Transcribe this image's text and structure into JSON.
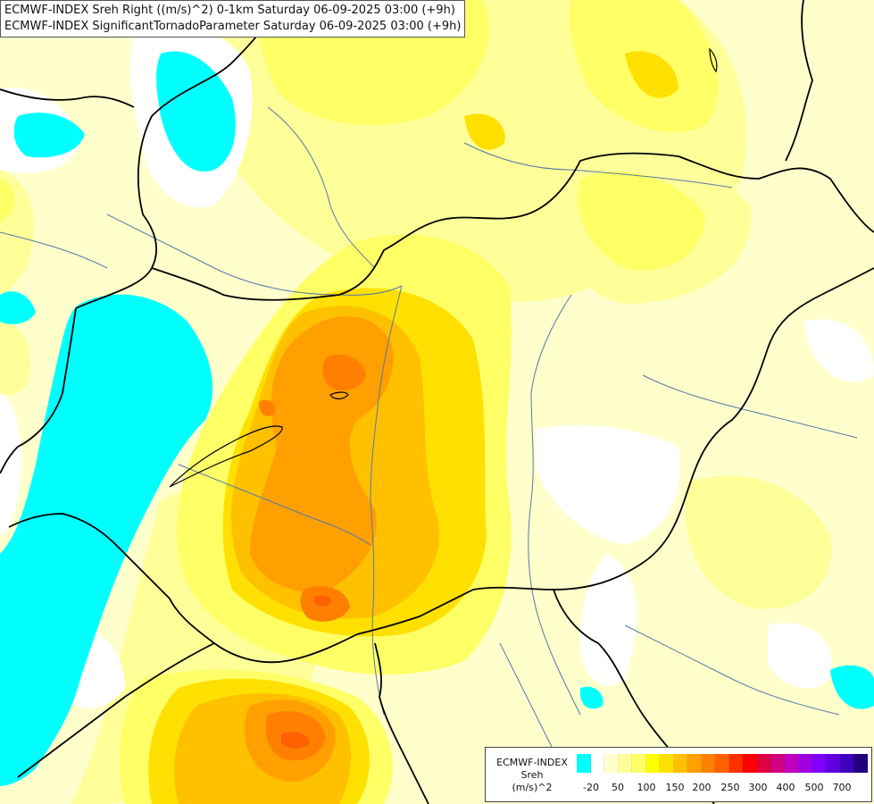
{
  "title": {
    "line1": "ECMWF-INDEX Sreh Right ((m/s)^2) 0-1km Saturday 06-09-2025 03:00 (+9h)",
    "line2": "ECMWF-INDEX SignificantTornadoParameter Saturday 06-09-2025 03:00 (+9h)"
  },
  "legend": {
    "line1": "ECMWF-INDEX",
    "line2": "Sreh",
    "line3": "(m/s)^2",
    "colors": [
      "#00ffff",
      "#ffffff",
      "#ffffcc",
      "#ffff99",
      "#ffff66",
      "#ffff00",
      "#ffe000",
      "#ffc000",
      "#ffa000",
      "#ff8000",
      "#ff6000",
      "#ff3000",
      "#ff0000",
      "#e00040",
      "#d00080",
      "#c000c0",
      "#a000e0",
      "#8000ff",
      "#6000e0",
      "#4000c0",
      "#200080"
    ],
    "ticks": [
      "-20",
      "50",
      "100",
      "150",
      "200",
      "250",
      "300",
      "400",
      "500",
      "700"
    ]
  },
  "map": {
    "fill_colors": {
      "cyan": "#00ffff",
      "white": "#ffffff",
      "pale": "#ffffcc",
      "light": "#ffff99",
      "yellow1": "#ffff66",
      "yellow2": "#ffff00",
      "gold": "#ffe000",
      "amber": "#ffc000",
      "orange": "#ffa000",
      "deep": "#ff8000",
      "red": "#ff6000"
    },
    "border_color": "#000000",
    "river_color": "#5577aa"
  }
}
